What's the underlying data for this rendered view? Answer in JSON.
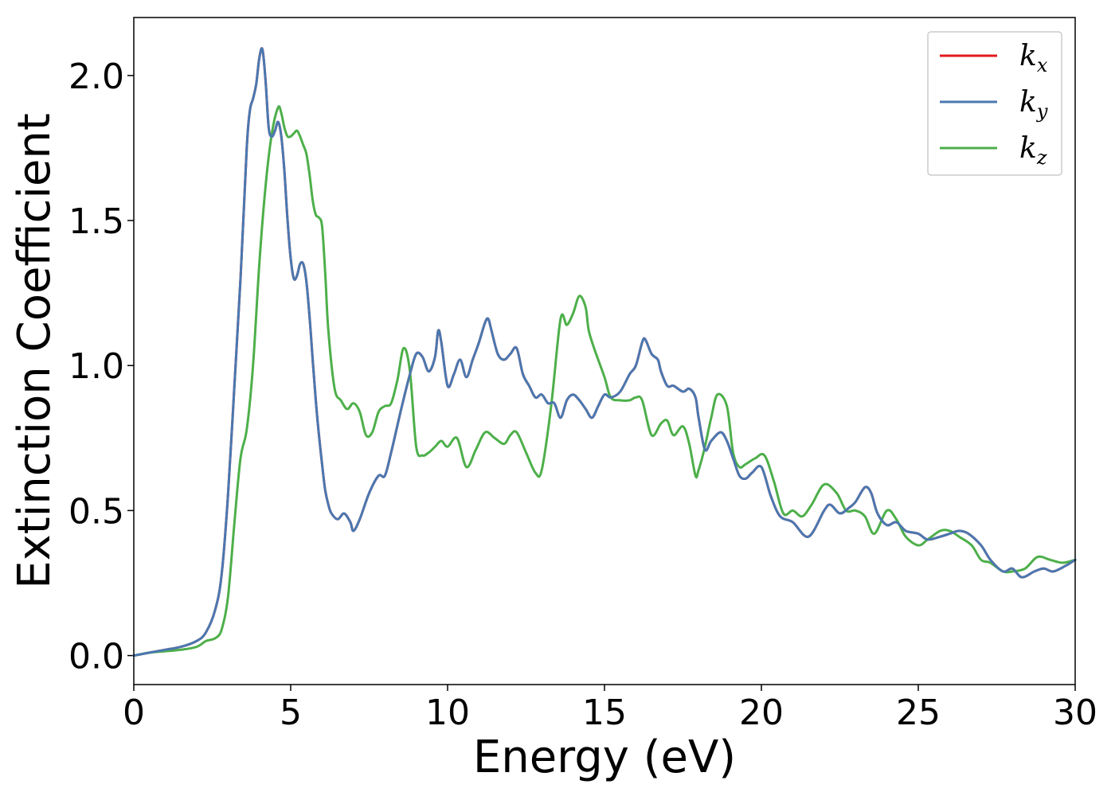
{
  "chart_data": {
    "type": "line",
    "title": "",
    "xlabel": "Energy (eV)",
    "ylabel": "Extinction Coefficient",
    "xlim": [
      0,
      30
    ],
    "ylim": [
      -0.1,
      2.2
    ],
    "xticks": [
      "0",
      "5",
      "10",
      "15",
      "20",
      "25",
      "30"
    ],
    "yticks": [
      "0.0",
      "0.5",
      "1.0",
      "1.5",
      "2.0"
    ],
    "grid": false,
    "legend_position": "top-right",
    "legend": [
      {
        "base": "k",
        "sub": "x",
        "color": "#e41a1c"
      },
      {
        "base": "k",
        "sub": "y",
        "color": "#4a78b0"
      },
      {
        "base": "k",
        "sub": "z",
        "color": "#4daf4a"
      }
    ],
    "series": [
      {
        "name": "kx",
        "color": "#e41a1c",
        "x": [
          0,
          0.5,
          1,
          1.5,
          2,
          2.3,
          2.6,
          2.8,
          3.0,
          3.2,
          3.4,
          3.6,
          3.7,
          3.8,
          3.9,
          4.0,
          4.1,
          4.2,
          4.3,
          4.4,
          4.5,
          4.6,
          4.7,
          4.8,
          4.9,
          5.0,
          5.1,
          5.2,
          5.3,
          5.4,
          5.5,
          5.6,
          5.7,
          5.8,
          5.9,
          6.0,
          6.1,
          6.2,
          6.3,
          6.5,
          6.7,
          6.9,
          7.0,
          7.2,
          7.5,
          7.8,
          8.0,
          8.2,
          8.5,
          8.8,
          9.0,
          9.2,
          9.4,
          9.6,
          9.7,
          9.8,
          10.0,
          10.2,
          10.4,
          10.6,
          10.8,
          11.0,
          11.2,
          11.3,
          11.4,
          11.6,
          11.8,
          12.0,
          12.2,
          12.4,
          12.6,
          12.8,
          13.0,
          13.2,
          13.4,
          13.6,
          13.8,
          14.0,
          14.2,
          14.4,
          14.6,
          14.8,
          15.0,
          15.2,
          15.5,
          15.8,
          16.0,
          16.2,
          16.3,
          16.5,
          16.7,
          16.8,
          17.0,
          17.2,
          17.5,
          17.7,
          17.9,
          18.0,
          18.2,
          18.4,
          18.7,
          18.9,
          19.1,
          19.3,
          19.5,
          19.7,
          20.0,
          20.3,
          20.6,
          21.0,
          21.5,
          22.0,
          22.2,
          22.5,
          22.8,
          23.0,
          23.3,
          23.5,
          23.7,
          24.0,
          24.3,
          24.6,
          25.0,
          25.3,
          25.7,
          26.0,
          26.3,
          26.6,
          27.0,
          27.3,
          27.7,
          28.0,
          28.3,
          28.7,
          29.0,
          29.3,
          29.7,
          30.0
        ],
        "y": [
          0.0,
          0.01,
          0.02,
          0.03,
          0.05,
          0.08,
          0.16,
          0.28,
          0.55,
          0.92,
          1.3,
          1.75,
          1.88,
          1.92,
          1.97,
          2.06,
          2.09,
          1.98,
          1.82,
          1.79,
          1.81,
          1.84,
          1.79,
          1.67,
          1.5,
          1.37,
          1.3,
          1.31,
          1.35,
          1.35,
          1.29,
          1.17,
          1.02,
          0.88,
          0.76,
          0.66,
          0.57,
          0.52,
          0.49,
          0.47,
          0.49,
          0.46,
          0.43,
          0.47,
          0.56,
          0.62,
          0.62,
          0.7,
          0.84,
          0.97,
          1.04,
          1.03,
          0.98,
          1.03,
          1.12,
          1.08,
          0.93,
          0.97,
          1.02,
          0.96,
          1.02,
          1.08,
          1.15,
          1.16,
          1.12,
          1.04,
          1.02,
          1.04,
          1.06,
          0.97,
          0.93,
          0.89,
          0.9,
          0.87,
          0.87,
          0.82,
          0.88,
          0.9,
          0.88,
          0.85,
          0.82,
          0.86,
          0.9,
          0.89,
          0.91,
          0.97,
          1.0,
          1.08,
          1.09,
          1.04,
          1.02,
          0.98,
          0.93,
          0.93,
          0.91,
          0.92,
          0.89,
          0.82,
          0.71,
          0.74,
          0.77,
          0.74,
          0.68,
          0.62,
          0.61,
          0.63,
          0.65,
          0.55,
          0.48,
          0.46,
          0.41,
          0.5,
          0.52,
          0.49,
          0.51,
          0.53,
          0.58,
          0.56,
          0.49,
          0.45,
          0.46,
          0.43,
          0.42,
          0.4,
          0.41,
          0.42,
          0.43,
          0.42,
          0.38,
          0.33,
          0.29,
          0.3,
          0.27,
          0.29,
          0.3,
          0.29,
          0.31,
          0.33
        ],
        "note_hidden": "identical to ky"
      },
      {
        "name": "ky",
        "color": "#4a78b0",
        "x": [
          0,
          0.5,
          1,
          1.5,
          2,
          2.3,
          2.6,
          2.8,
          3.0,
          3.2,
          3.4,
          3.6,
          3.7,
          3.8,
          3.9,
          4.0,
          4.1,
          4.2,
          4.3,
          4.4,
          4.5,
          4.6,
          4.7,
          4.8,
          4.9,
          5.0,
          5.1,
          5.2,
          5.3,
          5.4,
          5.5,
          5.6,
          5.7,
          5.8,
          5.9,
          6.0,
          6.1,
          6.2,
          6.3,
          6.5,
          6.7,
          6.9,
          7.0,
          7.2,
          7.5,
          7.8,
          8.0,
          8.2,
          8.5,
          8.8,
          9.0,
          9.2,
          9.4,
          9.6,
          9.7,
          9.8,
          10.0,
          10.2,
          10.4,
          10.6,
          10.8,
          11.0,
          11.2,
          11.3,
          11.4,
          11.6,
          11.8,
          12.0,
          12.2,
          12.4,
          12.6,
          12.8,
          13.0,
          13.2,
          13.4,
          13.6,
          13.8,
          14.0,
          14.2,
          14.4,
          14.6,
          14.8,
          15.0,
          15.2,
          15.5,
          15.8,
          16.0,
          16.2,
          16.3,
          16.5,
          16.7,
          16.8,
          17.0,
          17.2,
          17.5,
          17.7,
          17.9,
          18.0,
          18.2,
          18.4,
          18.7,
          18.9,
          19.1,
          19.3,
          19.5,
          19.7,
          20.0,
          20.3,
          20.6,
          21.0,
          21.5,
          22.0,
          22.2,
          22.5,
          22.8,
          23.0,
          23.3,
          23.5,
          23.7,
          24.0,
          24.3,
          24.6,
          25.0,
          25.3,
          25.7,
          26.0,
          26.3,
          26.6,
          27.0,
          27.3,
          27.7,
          28.0,
          28.3,
          28.7,
          29.0,
          29.3,
          29.7,
          30.0
        ],
        "y": [
          0.0,
          0.01,
          0.02,
          0.03,
          0.05,
          0.08,
          0.16,
          0.28,
          0.55,
          0.92,
          1.3,
          1.75,
          1.88,
          1.92,
          1.97,
          2.06,
          2.09,
          1.98,
          1.82,
          1.79,
          1.81,
          1.84,
          1.79,
          1.67,
          1.5,
          1.37,
          1.3,
          1.31,
          1.35,
          1.35,
          1.29,
          1.17,
          1.02,
          0.88,
          0.76,
          0.66,
          0.57,
          0.52,
          0.49,
          0.47,
          0.49,
          0.46,
          0.43,
          0.47,
          0.56,
          0.62,
          0.62,
          0.7,
          0.84,
          0.97,
          1.04,
          1.03,
          0.98,
          1.03,
          1.12,
          1.08,
          0.93,
          0.97,
          1.02,
          0.96,
          1.02,
          1.08,
          1.15,
          1.16,
          1.12,
          1.04,
          1.02,
          1.04,
          1.06,
          0.97,
          0.93,
          0.89,
          0.9,
          0.87,
          0.87,
          0.82,
          0.88,
          0.9,
          0.88,
          0.85,
          0.82,
          0.86,
          0.9,
          0.89,
          0.91,
          0.97,
          1.0,
          1.08,
          1.09,
          1.04,
          1.02,
          0.98,
          0.93,
          0.93,
          0.91,
          0.92,
          0.89,
          0.82,
          0.71,
          0.74,
          0.77,
          0.74,
          0.68,
          0.62,
          0.61,
          0.63,
          0.65,
          0.55,
          0.48,
          0.46,
          0.41,
          0.5,
          0.52,
          0.49,
          0.51,
          0.53,
          0.58,
          0.56,
          0.49,
          0.45,
          0.46,
          0.43,
          0.42,
          0.4,
          0.41,
          0.42,
          0.43,
          0.42,
          0.38,
          0.33,
          0.29,
          0.3,
          0.27,
          0.29,
          0.3,
          0.29,
          0.31,
          0.33
        ]
      },
      {
        "name": "kz",
        "color": "#4daf4a",
        "x": [
          0,
          0.5,
          1,
          1.5,
          2,
          2.3,
          2.6,
          2.8,
          3.0,
          3.2,
          3.4,
          3.6,
          3.8,
          4.0,
          4.2,
          4.4,
          4.6,
          4.7,
          4.8,
          4.9,
          5.0,
          5.1,
          5.2,
          5.3,
          5.4,
          5.5,
          5.6,
          5.7,
          5.8,
          5.9,
          6.0,
          6.1,
          6.2,
          6.4,
          6.6,
          6.8,
          7.0,
          7.2,
          7.4,
          7.6,
          7.8,
          8.0,
          8.2,
          8.4,
          8.6,
          8.8,
          9.0,
          9.2,
          9.4,
          9.6,
          9.8,
          10.0,
          10.3,
          10.6,
          10.9,
          11.2,
          11.5,
          11.8,
          12.0,
          12.2,
          12.5,
          12.8,
          13.0,
          13.3,
          13.6,
          13.8,
          14.0,
          14.2,
          14.4,
          14.5,
          14.7,
          15.0,
          15.2,
          15.5,
          15.8,
          16.0,
          16.2,
          16.5,
          16.8,
          17.0,
          17.2,
          17.5,
          17.7,
          17.9,
          18.0,
          18.2,
          18.4,
          18.6,
          18.9,
          19.1,
          19.3,
          19.5,
          19.8,
          20.1,
          20.4,
          20.7,
          21.0,
          21.3,
          21.6,
          22.0,
          22.4,
          22.7,
          23.0,
          23.3,
          23.6,
          24.0,
          24.3,
          24.6,
          25.0,
          25.3,
          25.7,
          26.0,
          26.3,
          26.7,
          27.0,
          27.3,
          27.7,
          28.0,
          28.4,
          28.8,
          29.2,
          29.6,
          30.0
        ],
        "y": [
          0.0,
          0.01,
          0.015,
          0.02,
          0.03,
          0.05,
          0.06,
          0.09,
          0.2,
          0.45,
          0.68,
          0.78,
          1.0,
          1.35,
          1.62,
          1.8,
          1.89,
          1.87,
          1.82,
          1.79,
          1.79,
          1.8,
          1.81,
          1.79,
          1.76,
          1.73,
          1.66,
          1.57,
          1.52,
          1.51,
          1.48,
          1.32,
          1.12,
          0.92,
          0.88,
          0.85,
          0.87,
          0.84,
          0.76,
          0.77,
          0.84,
          0.86,
          0.87,
          0.95,
          1.06,
          0.98,
          0.72,
          0.69,
          0.7,
          0.72,
          0.74,
          0.72,
          0.75,
          0.65,
          0.71,
          0.77,
          0.75,
          0.73,
          0.76,
          0.77,
          0.7,
          0.63,
          0.64,
          0.86,
          1.16,
          1.14,
          1.18,
          1.24,
          1.2,
          1.12,
          1.05,
          0.96,
          0.89,
          0.88,
          0.88,
          0.89,
          0.88,
          0.76,
          0.8,
          0.81,
          0.76,
          0.79,
          0.73,
          0.62,
          0.64,
          0.72,
          0.82,
          0.9,
          0.86,
          0.7,
          0.65,
          0.66,
          0.68,
          0.69,
          0.6,
          0.49,
          0.5,
          0.48,
          0.52,
          0.59,
          0.56,
          0.5,
          0.5,
          0.48,
          0.42,
          0.5,
          0.47,
          0.41,
          0.38,
          0.4,
          0.43,
          0.43,
          0.41,
          0.38,
          0.33,
          0.32,
          0.29,
          0.29,
          0.3,
          0.34,
          0.33,
          0.32,
          0.33
        ]
      }
    ]
  }
}
